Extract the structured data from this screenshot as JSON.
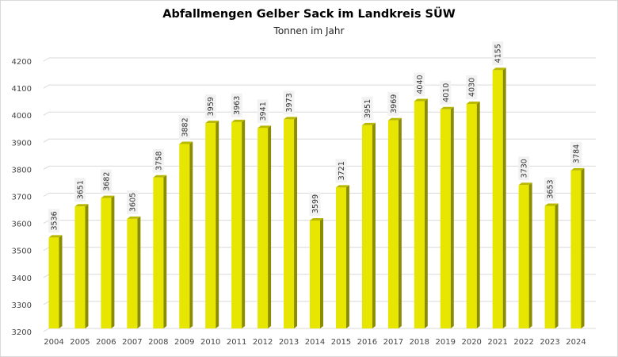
{
  "chart_data": {
    "type": "bar",
    "title": "Abfallmengen Gelber Sack im Landkreis SÜW",
    "subtitle": "Tonnen im Jahr",
    "xlabel": "",
    "ylabel": "",
    "categories": [
      "2004",
      "2005",
      "2006",
      "2007",
      "2008",
      "2009",
      "2010",
      "2011",
      "2012",
      "2013",
      "2014",
      "2015",
      "2016",
      "2017",
      "2018",
      "2019",
      "2020",
      "2021",
      "2022",
      "2023",
      "2024"
    ],
    "values": [
      3536,
      3651,
      3682,
      3605,
      3758,
      3882,
      3959,
      3963,
      3941,
      3973,
      3599,
      3721,
      3951,
      3969,
      4040,
      4010,
      4030,
      4155,
      3730,
      3653,
      3784
    ],
    "ylim": [
      3200,
      4200
    ],
    "yticks": [
      3200,
      3300,
      3400,
      3500,
      3600,
      3700,
      3800,
      3900,
      4000,
      4100,
      4200
    ],
    "grid": true,
    "legend": "none",
    "data_labels": true,
    "colors": {
      "bar_front": "#e6e600",
      "bar_side": "#8c8c00",
      "bar_top": "#b8b800",
      "grid": "#d9d9d9",
      "label_bg": "#f2f2f2"
    }
  }
}
